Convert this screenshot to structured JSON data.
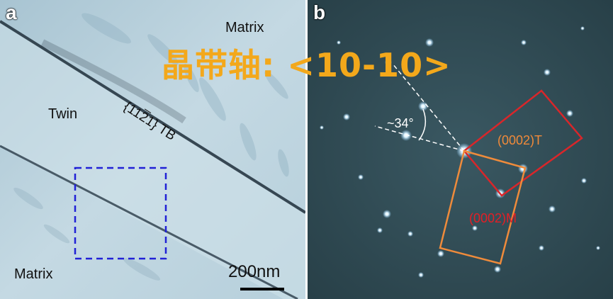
{
  "panel_a": {
    "letter": "a",
    "labels": {
      "matrix_top": "Matrix",
      "twin": "Twin",
      "twin_boundary_pre": "{11",
      "twin_boundary_bar": "2",
      "twin_boundary_post": "1} TB",
      "matrix_bottom": "Matrix"
    },
    "scale_bar": {
      "label": "200nm"
    },
    "colors": {
      "selection_box": "#2121d6",
      "background": "#bcd4e0"
    }
  },
  "panel_b": {
    "letter": "b",
    "angle_label": "~34°",
    "twin_spot_label": "(0002)T",
    "matrix_spot_label": "(0002)M",
    "colors": {
      "twin_rect": "#d9262a",
      "matrix_rect": "#ef8b3b",
      "background": "#2e4b54"
    }
  },
  "overlay": {
    "zone_axis": "晶带轴: <10-10>"
  }
}
